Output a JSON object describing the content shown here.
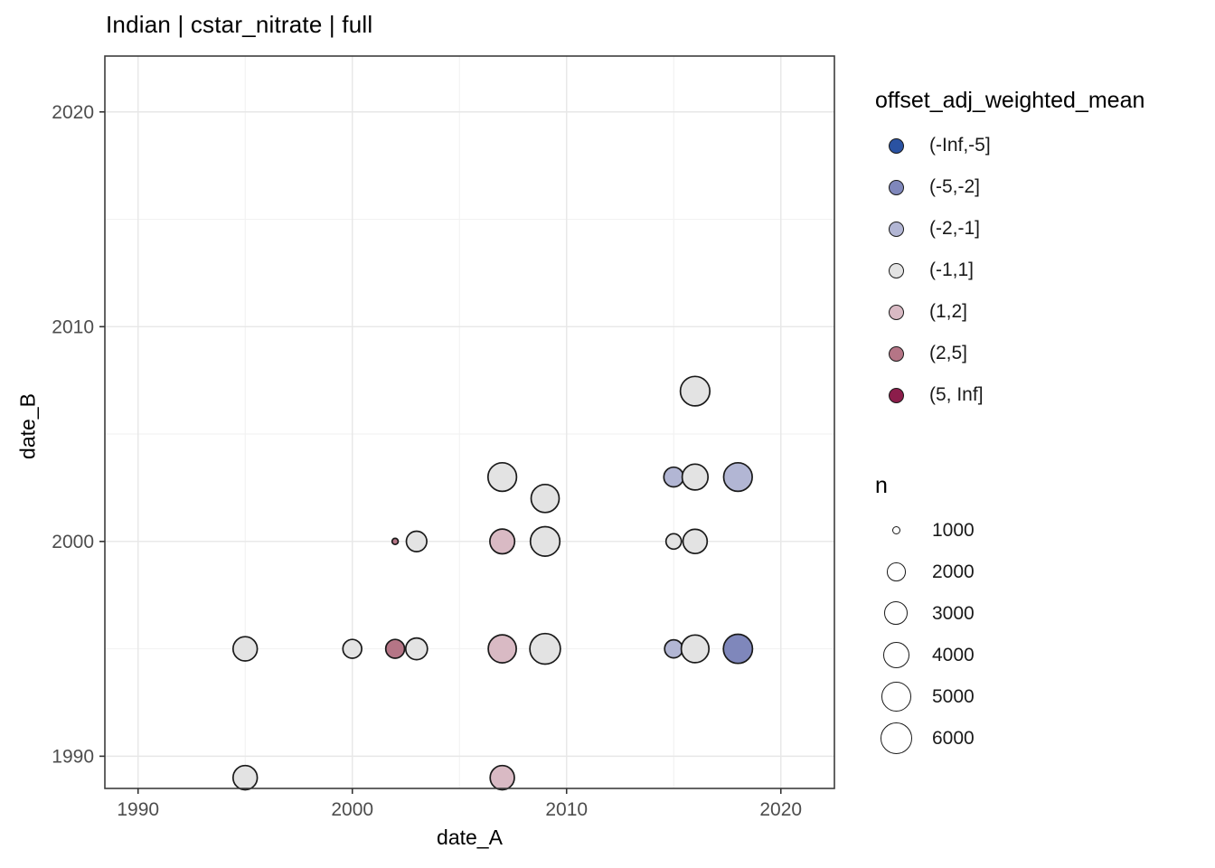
{
  "chart_data": {
    "type": "scatter",
    "title": "Indian | cstar_nitrate | full",
    "xlabel": "date_A",
    "ylabel": "date_B",
    "x_ticks": [
      1990,
      2000,
      2010,
      2020
    ],
    "y_ticks": [
      1990,
      2000,
      2010,
      2020
    ],
    "x_minor_ticks": [
      1995,
      2005,
      2015
    ],
    "y_minor_ticks": [
      1995,
      2005,
      2015
    ],
    "xlim": [
      1988.45,
      2022.5
    ],
    "ylim": [
      1988.5,
      2022.6
    ],
    "grid": true,
    "legend_position": "right",
    "color_legend": {
      "title": "offset_adj_weighted_mean",
      "bins": [
        {
          "label": "(-Inf,-5]",
          "color": "#2a52a2"
        },
        {
          "label": "(-5,-2]",
          "color": "#7f87bb"
        },
        {
          "label": "(-2,-1]",
          "color": "#b2b6d4"
        },
        {
          "label": "(-1,1]",
          "color": "#e3e3e3"
        },
        {
          "label": "(1,2]",
          "color": "#d9bac4"
        },
        {
          "label": "(2,5]",
          "color": "#b57586"
        },
        {
          "label": "(5, Inf]",
          "color": "#8c1d4b"
        }
      ]
    },
    "size_legend": {
      "title": "n",
      "entries": [
        {
          "label": "1000",
          "n": 1000
        },
        {
          "label": "2000",
          "n": 2000
        },
        {
          "label": "3000",
          "n": 3000
        },
        {
          "label": "4000",
          "n": 4000
        },
        {
          "label": "5000",
          "n": 5000
        },
        {
          "label": "6000",
          "n": 6000
        }
      ]
    },
    "points": [
      {
        "date_A": 1995,
        "date_B": 1989,
        "bin": "(-1,1]",
        "n": 3800
      },
      {
        "date_A": 2007,
        "date_B": 1989,
        "bin": "(1,2]",
        "n": 3800
      },
      {
        "date_A": 1995,
        "date_B": 1995,
        "bin": "(-1,1]",
        "n": 3800
      },
      {
        "date_A": 2000,
        "date_B": 1995,
        "bin": "(-1,1]",
        "n": 2400
      },
      {
        "date_A": 2002,
        "date_B": 1995,
        "bin": "(2,5]",
        "n": 2400
      },
      {
        "date_A": 2003,
        "date_B": 1995,
        "bin": "(-1,1]",
        "n": 3000
      },
      {
        "date_A": 2007,
        "date_B": 1995,
        "bin": "(1,2]",
        "n": 4900
      },
      {
        "date_A": 2009,
        "date_B": 1995,
        "bin": "(-1,1]",
        "n": 6200
      },
      {
        "date_A": 2015,
        "date_B": 1995,
        "bin": "(-2,-1]",
        "n": 2250
      },
      {
        "date_A": 2016,
        "date_B": 1995,
        "bin": "(-1,1]",
        "n": 4800
      },
      {
        "date_A": 2018,
        "date_B": 1995,
        "bin": "(-5,-2]",
        "n": 5400
      },
      {
        "date_A": 2002,
        "date_B": 2000,
        "bin": "(2,5]",
        "n": 950
      },
      {
        "date_A": 2003,
        "date_B": 2000,
        "bin": "(-1,1]",
        "n": 2750
      },
      {
        "date_A": 2007,
        "date_B": 2000,
        "bin": "(1,2]",
        "n": 4000
      },
      {
        "date_A": 2009,
        "date_B": 2000,
        "bin": "(-1,1]",
        "n": 5650
      },
      {
        "date_A": 2015,
        "date_B": 2000,
        "bin": "(-1,1]",
        "n": 1850
      },
      {
        "date_A": 2016,
        "date_B": 2000,
        "bin": "(-1,1]",
        "n": 3800
      },
      {
        "date_A": 2009,
        "date_B": 2002,
        "bin": "(-1,1]",
        "n": 4900
      },
      {
        "date_A": 2007,
        "date_B": 2003,
        "bin": "(-1,1]",
        "n": 5150
      },
      {
        "date_A": 2015,
        "date_B": 2003,
        "bin": "(-2,-1]",
        "n": 2600
      },
      {
        "date_A": 2016,
        "date_B": 2003,
        "bin": "(-1,1]",
        "n": 4300
      },
      {
        "date_A": 2018,
        "date_B": 2003,
        "bin": "(-2,-1]",
        "n": 5150
      },
      {
        "date_A": 2016,
        "date_B": 2007,
        "bin": "(-1,1]",
        "n": 5650
      }
    ],
    "colors": {
      "background": "#ffffff",
      "panel_border": "#3d3d3d",
      "grid_major": "#e7e7e7",
      "grid_minor": "#f2f2f2",
      "tick_mark": "#333333",
      "tick_label": "#4d4d4d",
      "text": "#000000",
      "point_stroke": "#1a1a1a"
    }
  }
}
